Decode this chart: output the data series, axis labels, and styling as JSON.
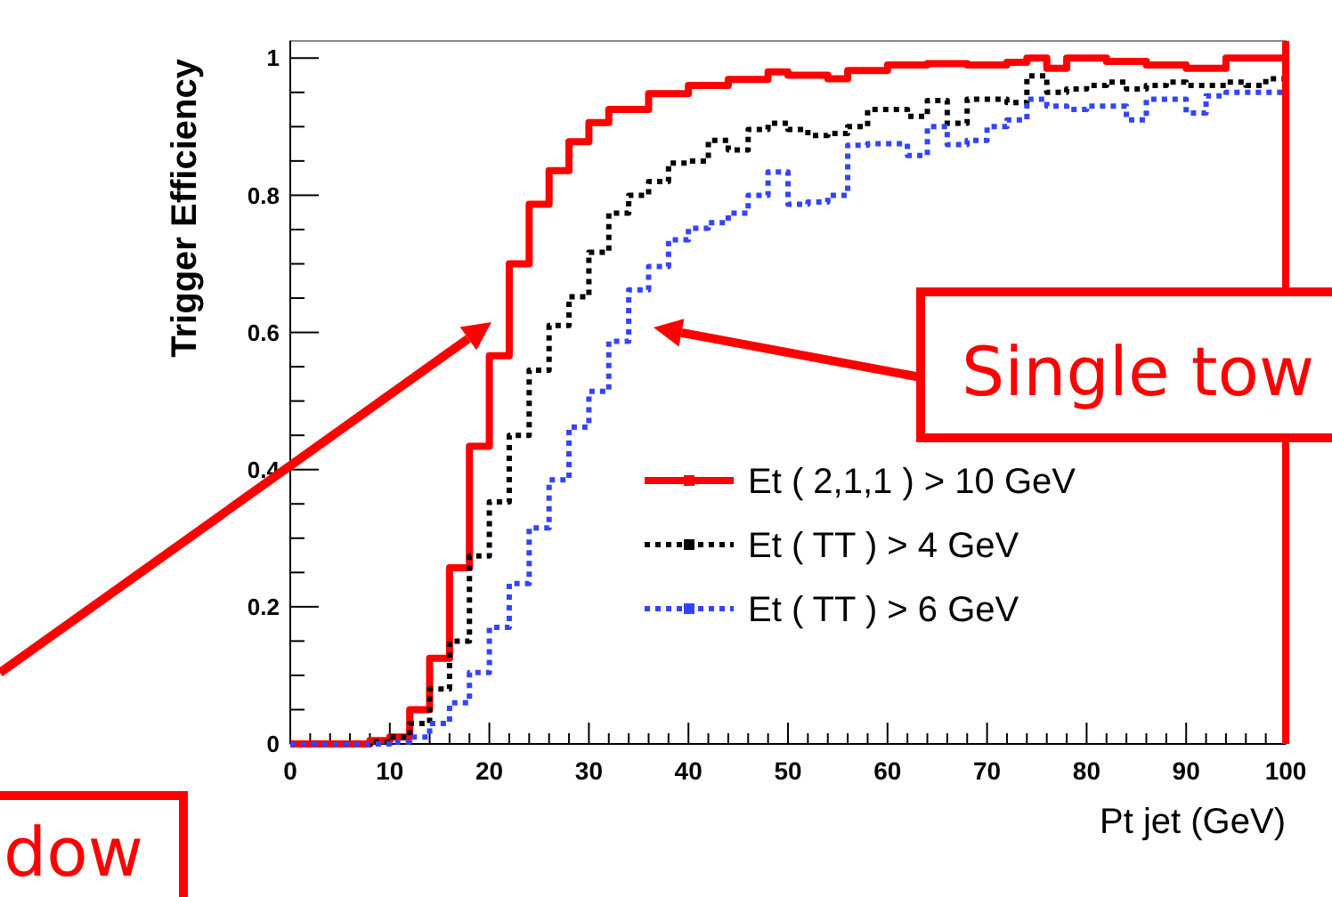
{
  "chart_data": {
    "type": "histogram",
    "xlabel": "Pt jet (GeV)",
    "ylabel": "Trigger Efficiency",
    "bins": [
      0,
      2,
      4,
      6,
      8,
      10,
      12,
      14,
      16,
      18,
      20,
      22,
      24,
      26,
      28,
      30,
      32,
      34,
      36,
      38,
      40,
      42,
      44,
      46,
      48,
      50,
      52,
      54,
      56,
      58,
      60,
      62,
      64,
      66,
      68,
      70,
      72,
      74,
      76,
      78,
      80,
      82,
      84,
      86,
      88,
      90,
      92,
      94,
      96,
      98,
      100
    ],
    "xlim": [
      0,
      100
    ],
    "xticks": [
      0,
      10,
      20,
      30,
      40,
      50,
      60,
      70,
      80,
      90,
      100
    ],
    "ylim": [
      0,
      1.025
    ],
    "yticks": [
      0,
      0.2,
      0.4,
      0.6,
      0.8,
      1
    ],
    "legend": "bottom right",
    "series": [
      {
        "name": "Et ( 2,1,1 ) > 10 GeV",
        "color": "#ff0000",
        "line_style": "solid",
        "values": [
          0,
          0,
          0,
          0,
          0.005,
          0.01,
          0.05,
          0.125,
          0.257,
          0.434,
          0.566,
          0.7,
          0.787,
          0.836,
          0.878,
          0.906,
          0.925,
          0.925,
          0.948,
          0.948,
          0.96,
          0.96,
          0.969,
          0.969,
          0.98,
          0.975,
          0.975,
          0.97,
          0.982,
          0.982,
          0.99,
          0.99,
          0.992,
          0.992,
          0.99,
          0.99,
          0.994,
          1.0,
          0.985,
          1.0,
          1.0,
          0.995,
          0.995,
          0.99,
          0.99,
          0.985,
          0.985,
          1.0,
          1.0,
          1.0
        ]
      },
      {
        "name": "Et ( TT ) > 4 GeV",
        "color": "#000000",
        "line_style": "dotted",
        "values": [
          0,
          0,
          0,
          0,
          0.003,
          0.01,
          0.03,
          0.08,
          0.15,
          0.274,
          0.353,
          0.45,
          0.545,
          0.61,
          0.652,
          0.717,
          0.774,
          0.8,
          0.82,
          0.847,
          0.85,
          0.88,
          0.866,
          0.896,
          0.905,
          0.896,
          0.887,
          0.89,
          0.9,
          0.925,
          0.925,
          0.915,
          0.938,
          0.905,
          0.94,
          0.94,
          0.935,
          0.974,
          0.95,
          0.955,
          0.96,
          0.965,
          0.955,
          0.96,
          0.965,
          0.96,
          0.96,
          0.965,
          0.96,
          0.97
        ]
      },
      {
        "name": "Et ( TT ) > 6 GeV",
        "color": "#3344ff",
        "line_style": "dotted",
        "values": [
          0,
          0,
          0,
          0,
          0,
          0.003,
          0.01,
          0.03,
          0.06,
          0.104,
          0.17,
          0.234,
          0.315,
          0.385,
          0.462,
          0.514,
          0.587,
          0.662,
          0.696,
          0.735,
          0.752,
          0.76,
          0.774,
          0.8,
          0.834,
          0.787,
          0.79,
          0.8,
          0.873,
          0.875,
          0.875,
          0.858,
          0.9,
          0.874,
          0.88,
          0.9,
          0.91,
          0.94,
          0.93,
          0.925,
          0.93,
          0.93,
          0.91,
          0.94,
          0.94,
          0.92,
          0.945,
          0.95,
          0.95,
          0.95
        ]
      }
    ],
    "annotations": [
      "Single tow",
      "dow"
    ]
  }
}
